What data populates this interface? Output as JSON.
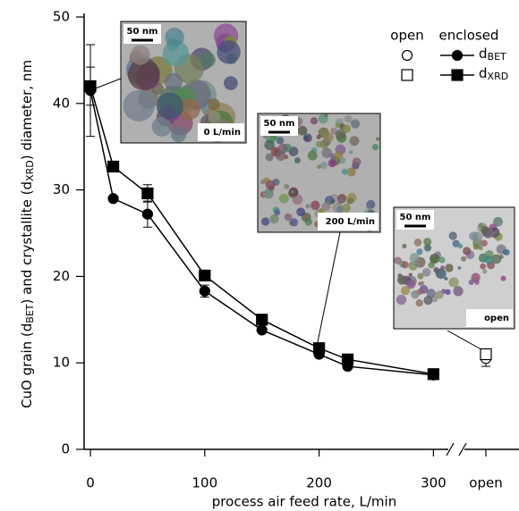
{
  "chart_data": {
    "type": "line",
    "xlabel": "process air feed rate, L/min",
    "ylabel_parts": [
      "CuO grain (d",
      "BET",
      ") and crystallite (d",
      "XRD",
      ") diameter, nm"
    ],
    "xlim": [
      -5.5,
      313
    ],
    "ylim": [
      0,
      50
    ],
    "xticks": [
      0,
      100,
      200,
      300
    ],
    "yticks": [
      0,
      10,
      20,
      30,
      40,
      50
    ],
    "x": [
      0,
      20,
      50,
      100,
      150,
      200,
      225,
      300
    ],
    "open_label": "open",
    "legend_headers": [
      "open",
      "enclosed"
    ],
    "series": [
      {
        "name_parts": [
          "d",
          "BET"
        ],
        "marker": "circle",
        "color": "#000000",
        "values": [
          41.5,
          29,
          27.2,
          18.3,
          13.8,
          11,
          9.6,
          8.6
        ],
        "errors": [
          5.3,
          null,
          1.5,
          0.7,
          null,
          null,
          null,
          null
        ],
        "open_value": 10.5,
        "open_error": 0.9
      },
      {
        "name_parts": [
          "d",
          "XRD"
        ],
        "marker": "square",
        "color": "#000000",
        "values": [
          42,
          32.7,
          29.6,
          20.1,
          15,
          11.7,
          10.4,
          8.7
        ],
        "errors": [
          2.2,
          null,
          1,
          null,
          null,
          null,
          null,
          null
        ],
        "open_value": 11,
        "open_error": null
      }
    ],
    "insets": [
      {
        "scale": "50 nm",
        "label": "0 L/min"
      },
      {
        "scale": "50 nm",
        "label": "200 L/min"
      },
      {
        "scale": "50 nm",
        "label": "open"
      }
    ]
  }
}
